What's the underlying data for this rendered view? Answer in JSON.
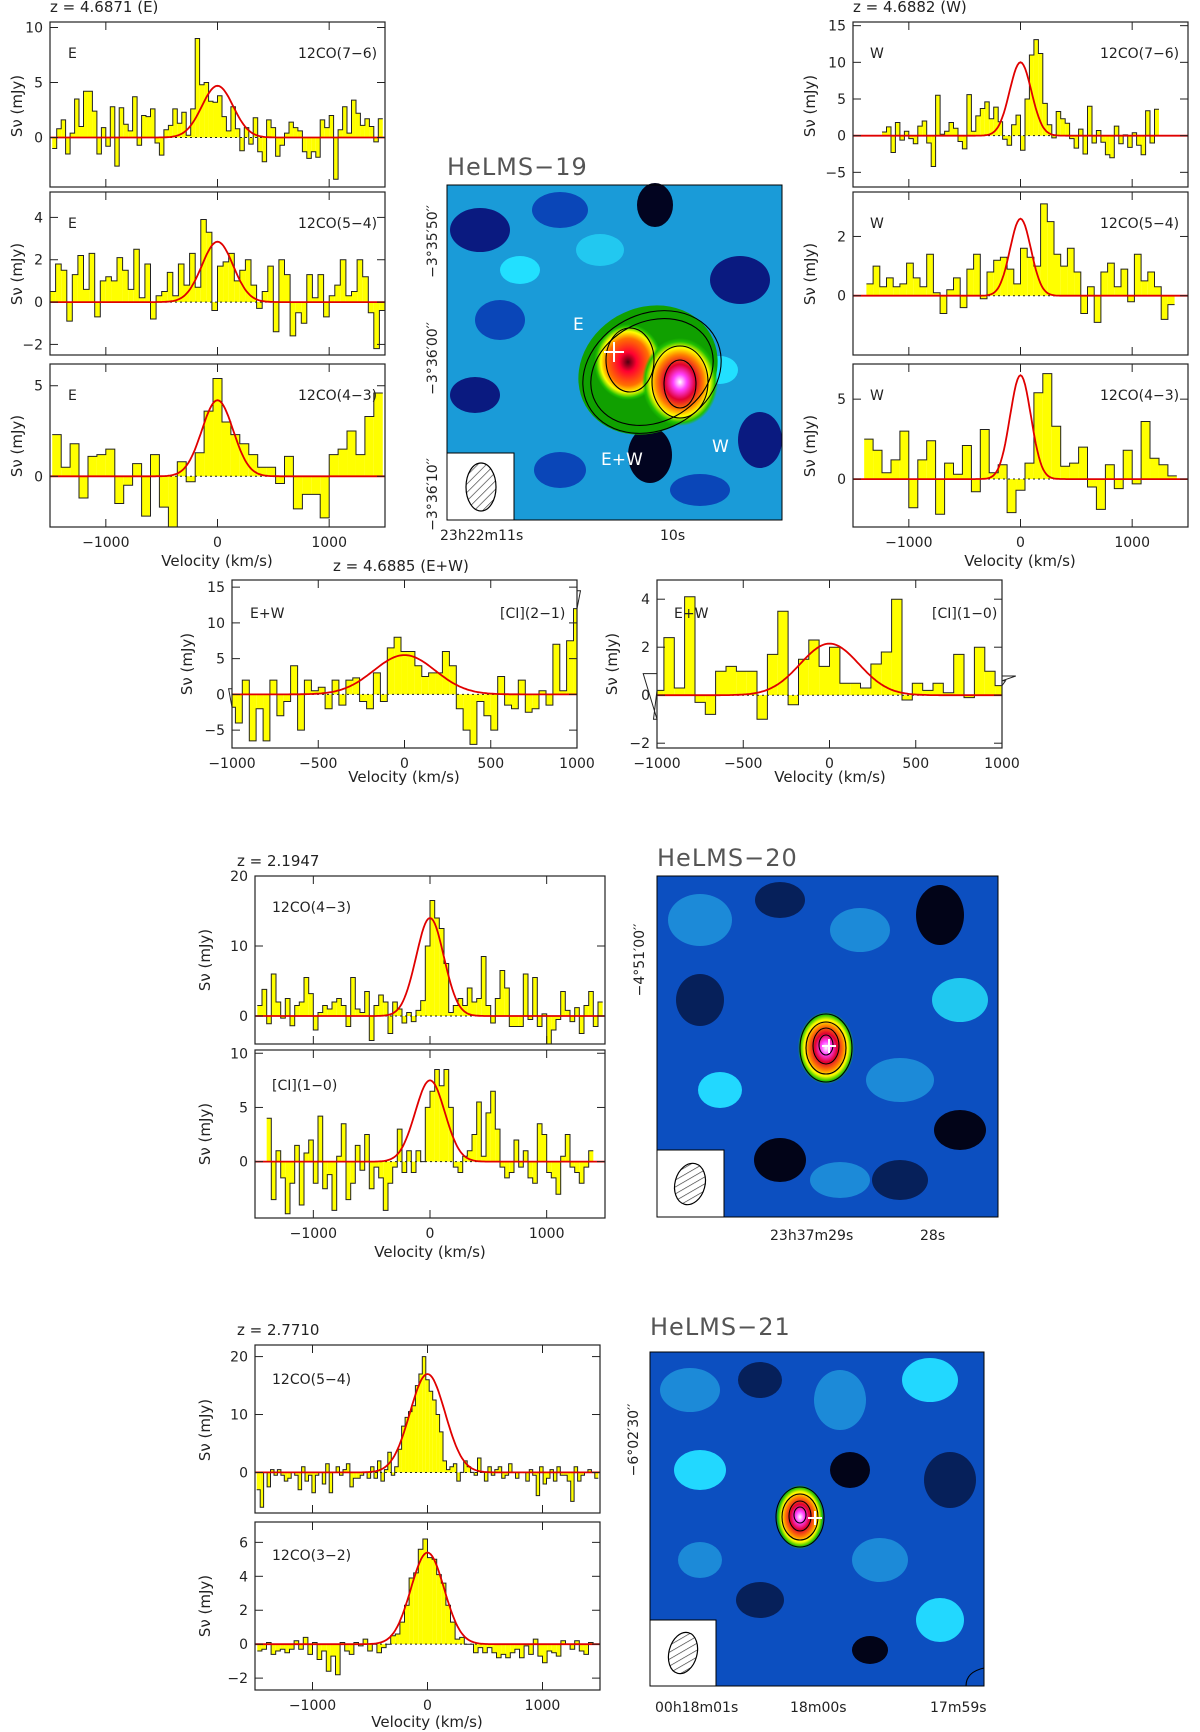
{
  "figure": {
    "colors": {
      "histogram_fill": "#ffff00",
      "fit_line": "#e00000",
      "axis": "#333333"
    }
  },
  "helms19": {
    "title": "HeLMS−19",
    "z_E": "z = 4.6871 (E)",
    "z_W": "z = 4.6882 (W)",
    "z_EW": "z = 4.6885 (E+W)",
    "map_labels": [
      "E",
      "E+W",
      "W"
    ],
    "dec_ticks": [
      "−3°35′50′′",
      "−3°36′00′′",
      "−3°36′10′′"
    ],
    "ra_ticks": [
      "23h22m11s",
      "10s"
    ]
  },
  "helms20": {
    "title": "HeLMS−20",
    "z": "z = 2.1947",
    "dec_ticks": [
      "−4°51′00′′"
    ],
    "ra_ticks": [
      "23h37m29s",
      "28s"
    ]
  },
  "helms21": {
    "title": "HeLMS−21",
    "z": "z = 2.7710",
    "dec_ticks": [
      "−6°02′30′′"
    ],
    "ra_ticks": [
      "00h18m01s",
      "18m00s",
      "17m59s"
    ]
  },
  "chart_data": [
    {
      "id": "h19_E_co76",
      "type": "bar",
      "region": "E",
      "line": "12CO(7−6)",
      "xlabel": "",
      "ylabel": "Sν (mJy)",
      "xlim": [
        -1500,
        1500
      ],
      "ylim": [
        -4.5,
        10.5
      ],
      "xticks": [
        -1000,
        0,
        1000
      ],
      "yticks": [
        0,
        5,
        10
      ],
      "fit": {
        "peak": 4.7,
        "center": 0,
        "fwhm": 330
      },
      "channel_width": 40,
      "values": [
        -1.0,
        0.8,
        1.6,
        -1.5,
        0.4,
        3.5,
        1.0,
        4.2,
        4.2,
        2.4,
        -1.5,
        0.9,
        -0.8,
        2.8,
        -2.6,
        2.7,
        1.2,
        0.6,
        3.7,
        -0.7,
        2.0,
        1.9,
        2.6,
        -0.5,
        -1.6,
        0.7,
        1.1,
        2.6,
        1.3,
        2.3,
        0.2,
        2.6,
        9.0,
        4.8,
        5.0,
        3.3,
        3.2,
        3.8,
        1.9,
        0.6,
        2.8,
        0.8,
        -1.2,
        0.9,
        -0.6,
        1.8,
        -1.3,
        -2.2,
        1.6,
        0.9,
        -1.7,
        -0.7,
        0.4,
        1.4,
        0.9,
        0.6,
        -1.3,
        -1.9,
        -1.3,
        -1.8,
        1.6,
        0.9,
        2.0,
        -3.8,
        0.7,
        2.8,
        0.4,
        3.4,
        2.2,
        1.1,
        1.7,
        1.0,
        -0.4,
        1.7
      ]
    },
    {
      "id": "h19_E_co54",
      "type": "bar",
      "region": "E",
      "line": "12CO(5−4)",
      "xlabel": "",
      "ylabel": "Sν (mJy)",
      "xlim": [
        -1500,
        1500
      ],
      "ylim": [
        -2.5,
        5.2
      ],
      "xticks": [
        -1000,
        0,
        1000
      ],
      "yticks": [
        -2,
        0,
        2,
        4
      ],
      "fit": {
        "peak": 2.85,
        "center": 0,
        "fwhm": 330
      },
      "channel_width": 50,
      "values": [
        0.5,
        1.8,
        1.5,
        -0.9,
        1.3,
        2.2,
        0.6,
        2.3,
        -0.7,
        1.0,
        1.2,
        1.0,
        2.1,
        1.5,
        0.6,
        2.5,
        0.2,
        1.8,
        -0.8,
        0.3,
        0.5,
        1.4,
        0.3,
        1.8,
        0.8,
        2.3,
        0.7,
        3.9,
        3.3,
        -0.4,
        1.7,
        1.9,
        2.3,
        1.0,
        1.5,
        2.0,
        0.8,
        -0.3,
        0.5,
        1.7,
        -1.4,
        2.0,
        1.3,
        -1.6,
        -0.5,
        -1.0,
        1.3,
        0.2,
        1.3,
        -0.7,
        0.3,
        0.8,
        2.0,
        0.3,
        0.5,
        2.0,
        1.2,
        -0.5,
        -2.2,
        -0.4
      ]
    },
    {
      "id": "h19_E_co43",
      "type": "bar",
      "region": "E",
      "line": "12CO(4−3)",
      "xlabel": "Velocity (km/s)",
      "ylabel": "Sν (mJy)",
      "xlim": [
        -1500,
        1500
      ],
      "ylim": [
        -2.8,
        6.2
      ],
      "xticks": [
        -1000,
        0,
        1000
      ],
      "yticks": [
        0,
        5
      ],
      "fit": {
        "peak": 4.2,
        "center": 0,
        "fwhm": 330
      },
      "channel_width": 80,
      "values": [
        2.3,
        0.5,
        1.8,
        -1.2,
        1.1,
        1.2,
        1.5,
        -1.5,
        -0.5,
        0.7,
        -2.2,
        1.2,
        -1.7,
        -2.8,
        0.8,
        -0.3,
        1.3,
        3.6,
        5.4,
        3.0,
        2.3,
        1.8,
        1.2,
        0.5,
        0.5,
        -0.4,
        1.1,
        -1.8,
        -1.0,
        -1.0,
        -2.3,
        1.2,
        1.5,
        2.5,
        1.2,
        3.3,
        4.6
      ]
    },
    {
      "id": "h19_W_co76",
      "type": "bar",
      "region": "W",
      "line": "12CO(7−6)",
      "xlabel": "",
      "ylabel": "Sν (mJy)",
      "xlim": [
        -1500,
        1500
      ],
      "ylim": [
        -7,
        15.5
      ],
      "xticks": [
        -1000,
        0,
        1000
      ],
      "yticks": [
        -5,
        0,
        5,
        10,
        15
      ],
      "fit": {
        "peak": 10.0,
        "center": 0,
        "fwhm": 230
      },
      "channel_width": 40,
      "values": [
        0.5,
        1.2,
        -2.3,
        1.8,
        -0.6,
        0.6,
        -0.4,
        -1.1,
        1.3,
        2.0,
        -1.0,
        -4.2,
        5.5,
        0.2,
        0.6,
        1.8,
        1.0,
        -0.8,
        -1.8,
        5.6,
        0.6,
        2.7,
        3.7,
        4.6,
        2.3,
        3.9,
        1.9,
        -0.5,
        -1.3,
        1.5,
        2.8,
        -2.0,
        5.0,
        11.0,
        13.1,
        11.2,
        4.4,
        1.5,
        -0.3,
        3.3,
        2.3,
        1.7,
        -0.4,
        -1.7,
        0.9,
        -2.5,
        4.0,
        -1.0,
        0.7,
        -0.9,
        -2.6,
        -3.0,
        1.3,
        -1.1,
        0.1,
        -1.6,
        0.4,
        -1.3,
        -2.6,
        3.4,
        -1.0,
        3.6
      ]
    },
    {
      "id": "h19_W_co54",
      "type": "bar",
      "region": "W",
      "line": "12CO(5−4)",
      "xlabel": "",
      "ylabel": "Sν (mJy)",
      "xlim": [
        -1500,
        1500
      ],
      "ylim": [
        -2,
        3.5
      ],
      "xticks": [
        -1000,
        0,
        1000
      ],
      "yticks": [
        0,
        2
      ],
      "fit": {
        "peak": 2.6,
        "center": 0,
        "fwhm": 220
      },
      "channel_width": 60,
      "values": [
        0.4,
        1.0,
        0.3,
        0.6,
        0.3,
        0.4,
        1.1,
        0.6,
        0.3,
        1.4,
        0.1,
        -0.6,
        0.2,
        0.6,
        -0.4,
        0.9,
        1.4,
        -0.1,
        0.8,
        1.2,
        1.3,
        0.9,
        0.4,
        1.6,
        1.3,
        1.0,
        3.1,
        2.5,
        1.4,
        1.0,
        1.6,
        0.8,
        -0.6,
        0.3,
        -0.9,
        0.8,
        1.1,
        0.3,
        0.9,
        -0.2,
        1.4,
        0.5,
        0.8,
        0.3,
        -0.8,
        -0.3
      ]
    },
    {
      "id": "h19_W_co43",
      "type": "bar",
      "region": "W",
      "line": "12CO(4−3)",
      "xlabel": "Velocity (km/s)",
      "ylabel": "Sν (mJy)",
      "xlim": [
        -1500,
        1500
      ],
      "ylim": [
        -3,
        7.2
      ],
      "xticks": [
        -1000,
        0,
        1000
      ],
      "yticks": [
        0,
        5
      ],
      "fit": {
        "peak": 6.5,
        "center": 0,
        "fwhm": 220
      },
      "channel_width": 80,
      "values": [
        2.5,
        1.8,
        0.4,
        1.2,
        3.0,
        -1.8,
        1.2,
        2.4,
        -2.2,
        1.0,
        0.3,
        2.1,
        -0.8,
        3.1,
        0.4,
        0.9,
        -2.1,
        -0.7,
        1.0,
        5.4,
        6.6,
        3.3,
        0.8,
        1.0,
        2.0,
        -0.5,
        -1.9,
        0.9,
        -0.6,
        1.8,
        -0.3,
        3.6,
        1.3,
        0.9,
        0.2
      ]
    },
    {
      "id": "h19_EW_ci21",
      "type": "bar",
      "region": "E+W",
      "line": "[CI](2−1)",
      "xlabel": "Velocity (km/s)",
      "ylabel": "Sν (mJy)",
      "xlim": [
        -1000,
        1000
      ],
      "ylim": [
        -7.5,
        16
      ],
      "xticks": [
        -1000,
        -500,
        0,
        500,
        1000
      ],
      "yticks": [
        -5,
        0,
        5,
        10,
        15
      ],
      "fit": {
        "peak": 5.5,
        "center": 0,
        "fwhm": 420
      },
      "channel_width": 40,
      "values": [
        0.8,
        -1.8,
        -4.0,
        2.0,
        -6.5,
        -2.0,
        -6.5,
        2.0,
        -3.0,
        -1.0,
        4.0,
        -5.0,
        2.0,
        0.5,
        1.0,
        -2.0,
        2.0,
        -1.5,
        2.0,
        2.3,
        -1.0,
        -2.0,
        3.0,
        -1.0,
        6.5,
        8.0,
        6.0,
        6.0,
        4.0,
        2.5,
        3.0,
        3.0,
        6.0,
        4.0,
        -2.0,
        -5.0,
        -7.0,
        -1.0,
        -3.0,
        -5.0,
        2.5,
        -1.5,
        -2.0,
        2.0,
        -2.5,
        -2.0,
        0.5,
        -1.5,
        7.0,
        0.5,
        7.5,
        12.0,
        14.5
      ]
    },
    {
      "id": "h19_EW_ci10",
      "type": "bar",
      "region": "E+W",
      "line": "[CI](1−0)",
      "xlabel": "Velocity (km/s)",
      "ylabel": "Sν (mJy)",
      "xlim": [
        -1000,
        1000
      ],
      "ylim": [
        -2.2,
        4.8
      ],
      "xticks": [
        -1000,
        -500,
        0,
        500,
        1000
      ],
      "yticks": [
        -2,
        0,
        2,
        4
      ],
      "fit": {
        "peak": 2.15,
        "center": 0,
        "fwhm": 400
      },
      "channel_width": 60,
      "values": [
        0.9,
        -1.0,
        0.2,
        2.4,
        0.3,
        4.1,
        -0.3,
        -0.8,
        1.0,
        1.2,
        1.0,
        1.0,
        -1.0,
        1.7,
        3.5,
        -0.4,
        1.5,
        2.3,
        1.2,
        2.0,
        0.5,
        0.5,
        0.3,
        1.3,
        1.8,
        4.0,
        -0.2,
        0.5,
        0.2,
        0.5,
        0.1,
        1.7,
        -0.1,
        2.0,
        1.0,
        0.4,
        0.6,
        0.8
      ]
    },
    {
      "id": "h20_co43",
      "type": "bar",
      "line": "12CO(4−3)",
      "xlabel": "",
      "ylabel": "Sν (mJy)",
      "xlim": [
        -1500,
        1500
      ],
      "ylim": [
        -4,
        20
      ],
      "xticks": [
        -1000,
        0,
        1000
      ],
      "yticks": [
        0,
        10,
        20
      ],
      "fit": {
        "peak": 14.0,
        "center": 0,
        "fwhm": 280
      },
      "channel_width": 40,
      "values": [
        1.5,
        3.8,
        -1.1,
        6.0,
        2.0,
        -0.3,
        2.5,
        -1.4,
        1.5,
        2.0,
        5.5,
        3.2,
        -2.0,
        0.5,
        1.5,
        1.0,
        2.0,
        2.5,
        1.5,
        -1.5,
        5.5,
        1.0,
        0.5,
        3.5,
        -3.5,
        1.5,
        3.0,
        2.0,
        -2.5,
        2.0,
        1.0,
        -1.0,
        0.5,
        -0.8,
        0.8,
        2.2,
        10.0,
        16.5,
        14.0,
        12.5,
        7.5,
        0.5,
        1.5,
        2.5,
        1.5,
        4.0,
        2.0,
        2.5,
        8.5,
        1.5,
        -1.0,
        2.5,
        6.5,
        4.0,
        -1.5,
        -1.5,
        -1.5,
        6.0,
        -0.5,
        5.5,
        -1.5,
        0.3,
        -4.0,
        -2.0,
        -0.5,
        3.5,
        0.8,
        -0.8,
        1.2,
        -2.5,
        1.5,
        3.5,
        -1.5,
        2.0
      ]
    },
    {
      "id": "h20_ci10",
      "type": "bar",
      "line": "[CI](1−0)",
      "xlabel": "Velocity (km/s)",
      "ylabel": "Sν (mJy)",
      "xlim": [
        -1500,
        1500
      ],
      "ylim": [
        -5.2,
        10.3
      ],
      "xticks": [
        -1000,
        0,
        1000
      ],
      "yticks": [
        0,
        5,
        10
      ],
      "fit": {
        "peak": 7.5,
        "center": 0,
        "fwhm": 300
      },
      "channel_width": 40,
      "values": [
        4.0,
        -3.5,
        1.0,
        -1.5,
        -4.8,
        -2.0,
        1.5,
        -4.0,
        0.8,
        2.0,
        -2.0,
        4.2,
        -2.5,
        -1.2,
        -4.5,
        0.5,
        3.5,
        -3.5,
        -2.0,
        1.5,
        -0.8,
        2.5,
        -2.5,
        -0.5,
        -1.5,
        -4.5,
        -2.0,
        -0.5,
        3.0,
        -1.0,
        1.0,
        -1.0,
        1.0,
        0.0,
        5.0,
        6.5,
        8.5,
        7.0,
        8.5,
        5.0,
        -0.5,
        -1.0,
        0.5,
        1.0,
        2.5,
        5.5,
        0.5,
        4.5,
        6.5,
        3.0,
        -0.5,
        -1.5,
        -1.0,
        2.0,
        -0.5,
        1.0,
        -1.5,
        -2.0,
        3.5,
        2.5,
        -1.0,
        -1.5,
        -3.0,
        0.5,
        2.5,
        -0.5,
        -1.0,
        -2.0,
        -0.5,
        1.0
      ]
    },
    {
      "id": "h21_co54",
      "type": "bar",
      "line": "12CO(5−4)",
      "xlabel": "",
      "ylabel": "Sν (mJy)",
      "xlim": [
        -1500,
        1500
      ],
      "ylim": [
        -7,
        22
      ],
      "xticks": [
        -1000,
        0,
        1000
      ],
      "yticks": [
        0,
        10,
        20
      ],
      "fit": {
        "peak": 17.0,
        "center": 0,
        "fwhm": 360
      },
      "channel_width": 30,
      "values": [
        -3.0,
        -6.0,
        0.0,
        -2.5,
        0.5,
        -0.5,
        0.5,
        -0.5,
        -1.5,
        -1.0,
        0.0,
        -0.5,
        -3.0,
        1.0,
        -1.5,
        -0.5,
        -3.5,
        -0.5,
        0.0,
        -2.0,
        1.5,
        -3.5,
        0.0,
        1.0,
        -0.5,
        0.5,
        1.5,
        -2.5,
        -1.0,
        -1.0,
        -0.5,
        0.0,
        -1.0,
        1.0,
        -1.0,
        2.0,
        -1.5,
        0.5,
        3.5,
        -0.5,
        1.0,
        4.0,
        8.0,
        9.5,
        10.5,
        11.5,
        15.0,
        17.0,
        20.0,
        16.0,
        14.0,
        12.5,
        10.0,
        7.0,
        2.0,
        0.5,
        1.0,
        1.5,
        -1.5,
        0.0,
        2.0,
        1.0,
        0.0,
        -0.5,
        2.5,
        0.0,
        -1.5,
        1.0,
        -0.5,
        0.5,
        1.0,
        -1.0,
        -0.5,
        1.5,
        0.0,
        -1.0,
        0.0,
        0.0,
        -1.5,
        0.5,
        -0.5,
        -4.0,
        1.0,
        -2.0,
        -1.0,
        0.5,
        -1.5,
        1.0,
        -0.5,
        -0.5,
        -1.5,
        -5.0,
        1.0,
        -1.5,
        -0.5,
        0.0,
        0.5,
        0.0,
        -1.0
      ]
    },
    {
      "id": "h21_co32",
      "type": "bar",
      "line": "12CO(3−2)",
      "xlabel": "Velocity (km/s)",
      "ylabel": "Sν (mJy)",
      "xlim": [
        -1500,
        1500
      ],
      "ylim": [
        -2.7,
        7.2
      ],
      "xticks": [
        -1000,
        0,
        1000
      ],
      "yticks": [
        -2,
        0,
        2,
        4,
        6
      ],
      "fit": {
        "peak": 5.4,
        "center": 0,
        "fwhm": 340
      },
      "channel_width": 40,
      "values": [
        -0.4,
        -0.3,
        0.1,
        -0.6,
        -0.4,
        -0.3,
        -0.5,
        -0.3,
        0.2,
        -0.3,
        0.4,
        -0.6,
        0.1,
        -0.9,
        -0.4,
        -1.6,
        -0.7,
        -1.8,
        0.1,
        -0.4,
        -0.6,
        0.1,
        -0.1,
        0.3,
        -0.4,
        0.0,
        -0.5,
        -0.2,
        0.0,
        0.5,
        0.6,
        1.3,
        2.3,
        3.9,
        4.2,
        5.6,
        6.2,
        5.1,
        5.0,
        4.1,
        3.6,
        2.3,
        1.3,
        0.3,
        0.4,
        0.0,
        0.0,
        -0.5,
        -0.2,
        -0.5,
        -0.2,
        -0.5,
        -0.8,
        -0.6,
        -0.8,
        -0.5,
        -0.3,
        -0.8,
        -0.1,
        -0.6,
        0.3,
        -0.7,
        -1.1,
        -0.4,
        -0.5,
        -0.7,
        0.2,
        0.0,
        -0.3,
        0.2,
        -0.4,
        -0.6,
        0.1,
        0.0
      ]
    }
  ]
}
